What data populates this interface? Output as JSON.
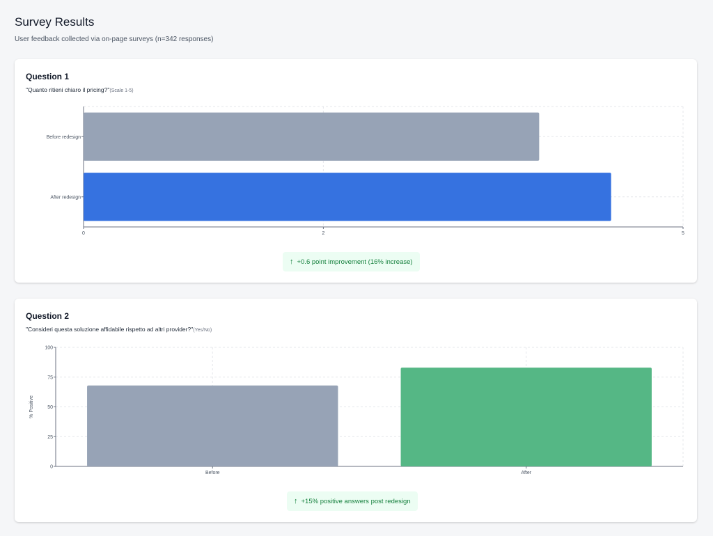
{
  "header": {
    "title": "Survey Results",
    "subtitle": "User feedback collected via on-page surveys (n=342 responses)"
  },
  "colors": {
    "before": "#97a3b6",
    "after_q1": "#3672e0",
    "after_q2": "#55b785",
    "callout_bg": "#ecfdf3",
    "callout_text": "#15803d"
  },
  "questions": [
    {
      "title": "Question 1",
      "question": "\"Quanto ritieni chiaro il pricing?\"",
      "scale": "(Scale 1-5)",
      "callout": "+0.6 point improvement (16% increase)"
    },
    {
      "title": "Question 2",
      "question": "\"Consideri questa soluzione affidabile rispetto ad altri provider?\"",
      "scale": "(Yes/No)",
      "callout": "+15% positive answers post redesign"
    }
  ],
  "chart_data": [
    {
      "type": "bar",
      "orientation": "horizontal",
      "categories": [
        "Before redesign",
        "After redesign"
      ],
      "values": [
        3.8,
        4.4
      ],
      "xlim": [
        0,
        5
      ],
      "xticks": [
        "0",
        "2",
        "5"
      ],
      "xtick_values": [
        0,
        2,
        5
      ],
      "grid": true
    },
    {
      "type": "bar",
      "orientation": "vertical",
      "categories": [
        "Before",
        "After"
      ],
      "values": [
        68,
        83
      ],
      "ylabel": "% Positive",
      "ylim": [
        0,
        100
      ],
      "yticks": [
        "0",
        "25",
        "50",
        "75",
        "100"
      ],
      "ytick_values": [
        0,
        25,
        50,
        75,
        100
      ],
      "grid": true
    }
  ]
}
